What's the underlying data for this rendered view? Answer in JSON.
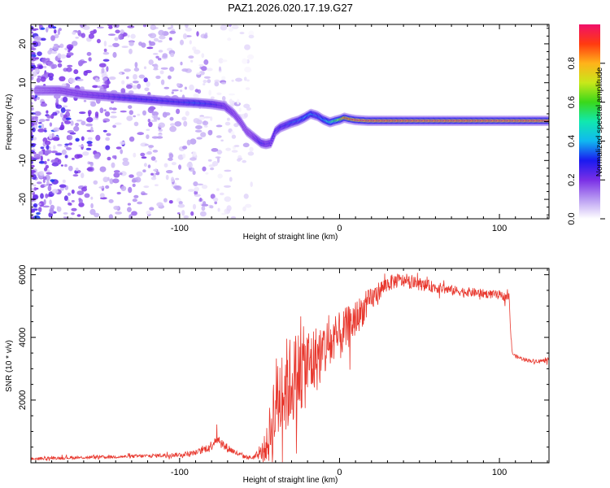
{
  "figure_title": "PAZ1.2026.020.17.19.G27",
  "chart_data": [
    {
      "type": "heatmap",
      "title": "PAZ1.2026.020.17.19.G27",
      "xlabel": "Height of straight line (km)",
      "ylabel": "Frequency (Hz)",
      "xlim": [
        -193,
        131
      ],
      "ylim": [
        -25,
        25
      ],
      "x_ticks": [
        -100,
        0,
        100
      ],
      "x_tick_labels": [
        "-100",
        "0",
        "100"
      ],
      "y_ticks": [
        -20,
        -10,
        0,
        10,
        20
      ],
      "y_tick_labels": [
        "-20",
        "-10",
        "0",
        "10",
        "20"
      ],
      "colorbar": {
        "label": "Normalized spectral amplitude",
        "range": [
          0,
          1
        ],
        "ticks": [
          0.0,
          0.2,
          0.4,
          0.6,
          0.8
        ],
        "tick_labels": [
          "0.0",
          "0.2",
          "0.4",
          "0.6",
          "0.8"
        ]
      },
      "ridge": {
        "x": [
          -190,
          -175,
          -160,
          -145,
          -130,
          -115,
          -100,
          -90,
          -80,
          -72,
          -66,
          -62,
          -58,
          -55,
          -52,
          -49,
          -46,
          -43,
          -40,
          -37,
          -34,
          -30,
          -26,
          -22,
          -18,
          -14,
          -10,
          -6,
          -2,
          0,
          3,
          6,
          10,
          14,
          18,
          25,
          40,
          60,
          80,
          100,
          120,
          131
        ],
        "frequency": [
          8,
          8,
          7,
          6.5,
          6,
          5.5,
          5,
          4.8,
          4.5,
          4,
          2,
          0,
          -2.5,
          -3.5,
          -4.5,
          -5.5,
          -5.8,
          -5.5,
          -2.5,
          -1.5,
          -1,
          -0.3,
          0.2,
          1,
          2,
          1.5,
          0.5,
          -0.2,
          0.3,
          0.5,
          1,
          0.7,
          0.4,
          0.3,
          0.2,
          0.2,
          0.2,
          0.2,
          0.2,
          0.2,
          0.2,
          0.2
        ],
        "amplitude": [
          0.15,
          0.2,
          0.22,
          0.25,
          0.3,
          0.3,
          0.3,
          0.35,
          0.3,
          0.25,
          0.22,
          0.2,
          0.2,
          0.2,
          0.25,
          0.3,
          0.25,
          0.25,
          0.28,
          0.3,
          0.3,
          0.35,
          0.35,
          0.4,
          0.4,
          0.35,
          0.4,
          0.5,
          0.6,
          0.7,
          0.9,
          0.9,
          0.95,
          0.95,
          0.95,
          0.95,
          0.95,
          0.95,
          0.95,
          0.95,
          0.95,
          0.95
        ]
      },
      "noise_region_x": [
        -193,
        -55
      ]
    },
    {
      "type": "line",
      "xlabel": "Height of straight line (km)",
      "ylabel": "SNR (10 * v/v)",
      "xlim": [
        -193,
        131
      ],
      "ylim": [
        0,
        6200
      ],
      "x_ticks": [
        -100,
        0,
        100
      ],
      "x_tick_labels": [
        "-100",
        "0",
        "100"
      ],
      "y_ticks": [
        2000,
        4000,
        6000
      ],
      "y_tick_labels": [
        "2000",
        "4000",
        "6000"
      ],
      "series": [
        {
          "name": "SNR",
          "color": "#e8382e",
          "x": [
            -193,
            -180,
            -160,
            -140,
            -120,
            -100,
            -90,
            -85,
            -80,
            -77,
            -75,
            -72,
            -68,
            -65,
            -60,
            -55,
            -50,
            -45,
            -42,
            -40,
            -37,
            -34,
            -30,
            -25,
            -20,
            -15,
            -10,
            -5,
            0,
            5,
            10,
            15,
            20,
            25,
            30,
            35,
            40,
            50,
            60,
            70,
            80,
            90,
            100,
            103,
            106,
            107,
            108,
            110,
            115,
            120,
            125,
            131
          ],
          "y": [
            120,
            150,
            170,
            190,
            220,
            260,
            320,
            420,
            560,
            800,
            720,
            520,
            420,
            320,
            200,
            160,
            260,
            600,
            1300,
            1900,
            2200,
            2400,
            2600,
            2900,
            3100,
            3300,
            3600,
            3800,
            4000,
            4300,
            4600,
            4900,
            5200,
            5500,
            5700,
            5800,
            5800,
            5700,
            5600,
            5500,
            5450,
            5400,
            5350,
            5300,
            5300,
            4200,
            3500,
            3400,
            3300,
            3250,
            3250,
            3250
          ],
          "noise_amplitude": [
            40,
            50,
            50,
            50,
            60,
            70,
            80,
            120,
            160,
            200,
            200,
            160,
            120,
            90,
            70,
            60,
            150,
            600,
            1400,
            1500,
            1600,
            1600,
            1500,
            1400,
            1300,
            1100,
            1000,
            900,
            800,
            700,
            600,
            500,
            400,
            300,
            260,
            240,
            220,
            200,
            180,
            160,
            150,
            140,
            140,
            140,
            140,
            100,
            60,
            60,
            60,
            60,
            60,
            60
          ]
        }
      ]
    }
  ]
}
